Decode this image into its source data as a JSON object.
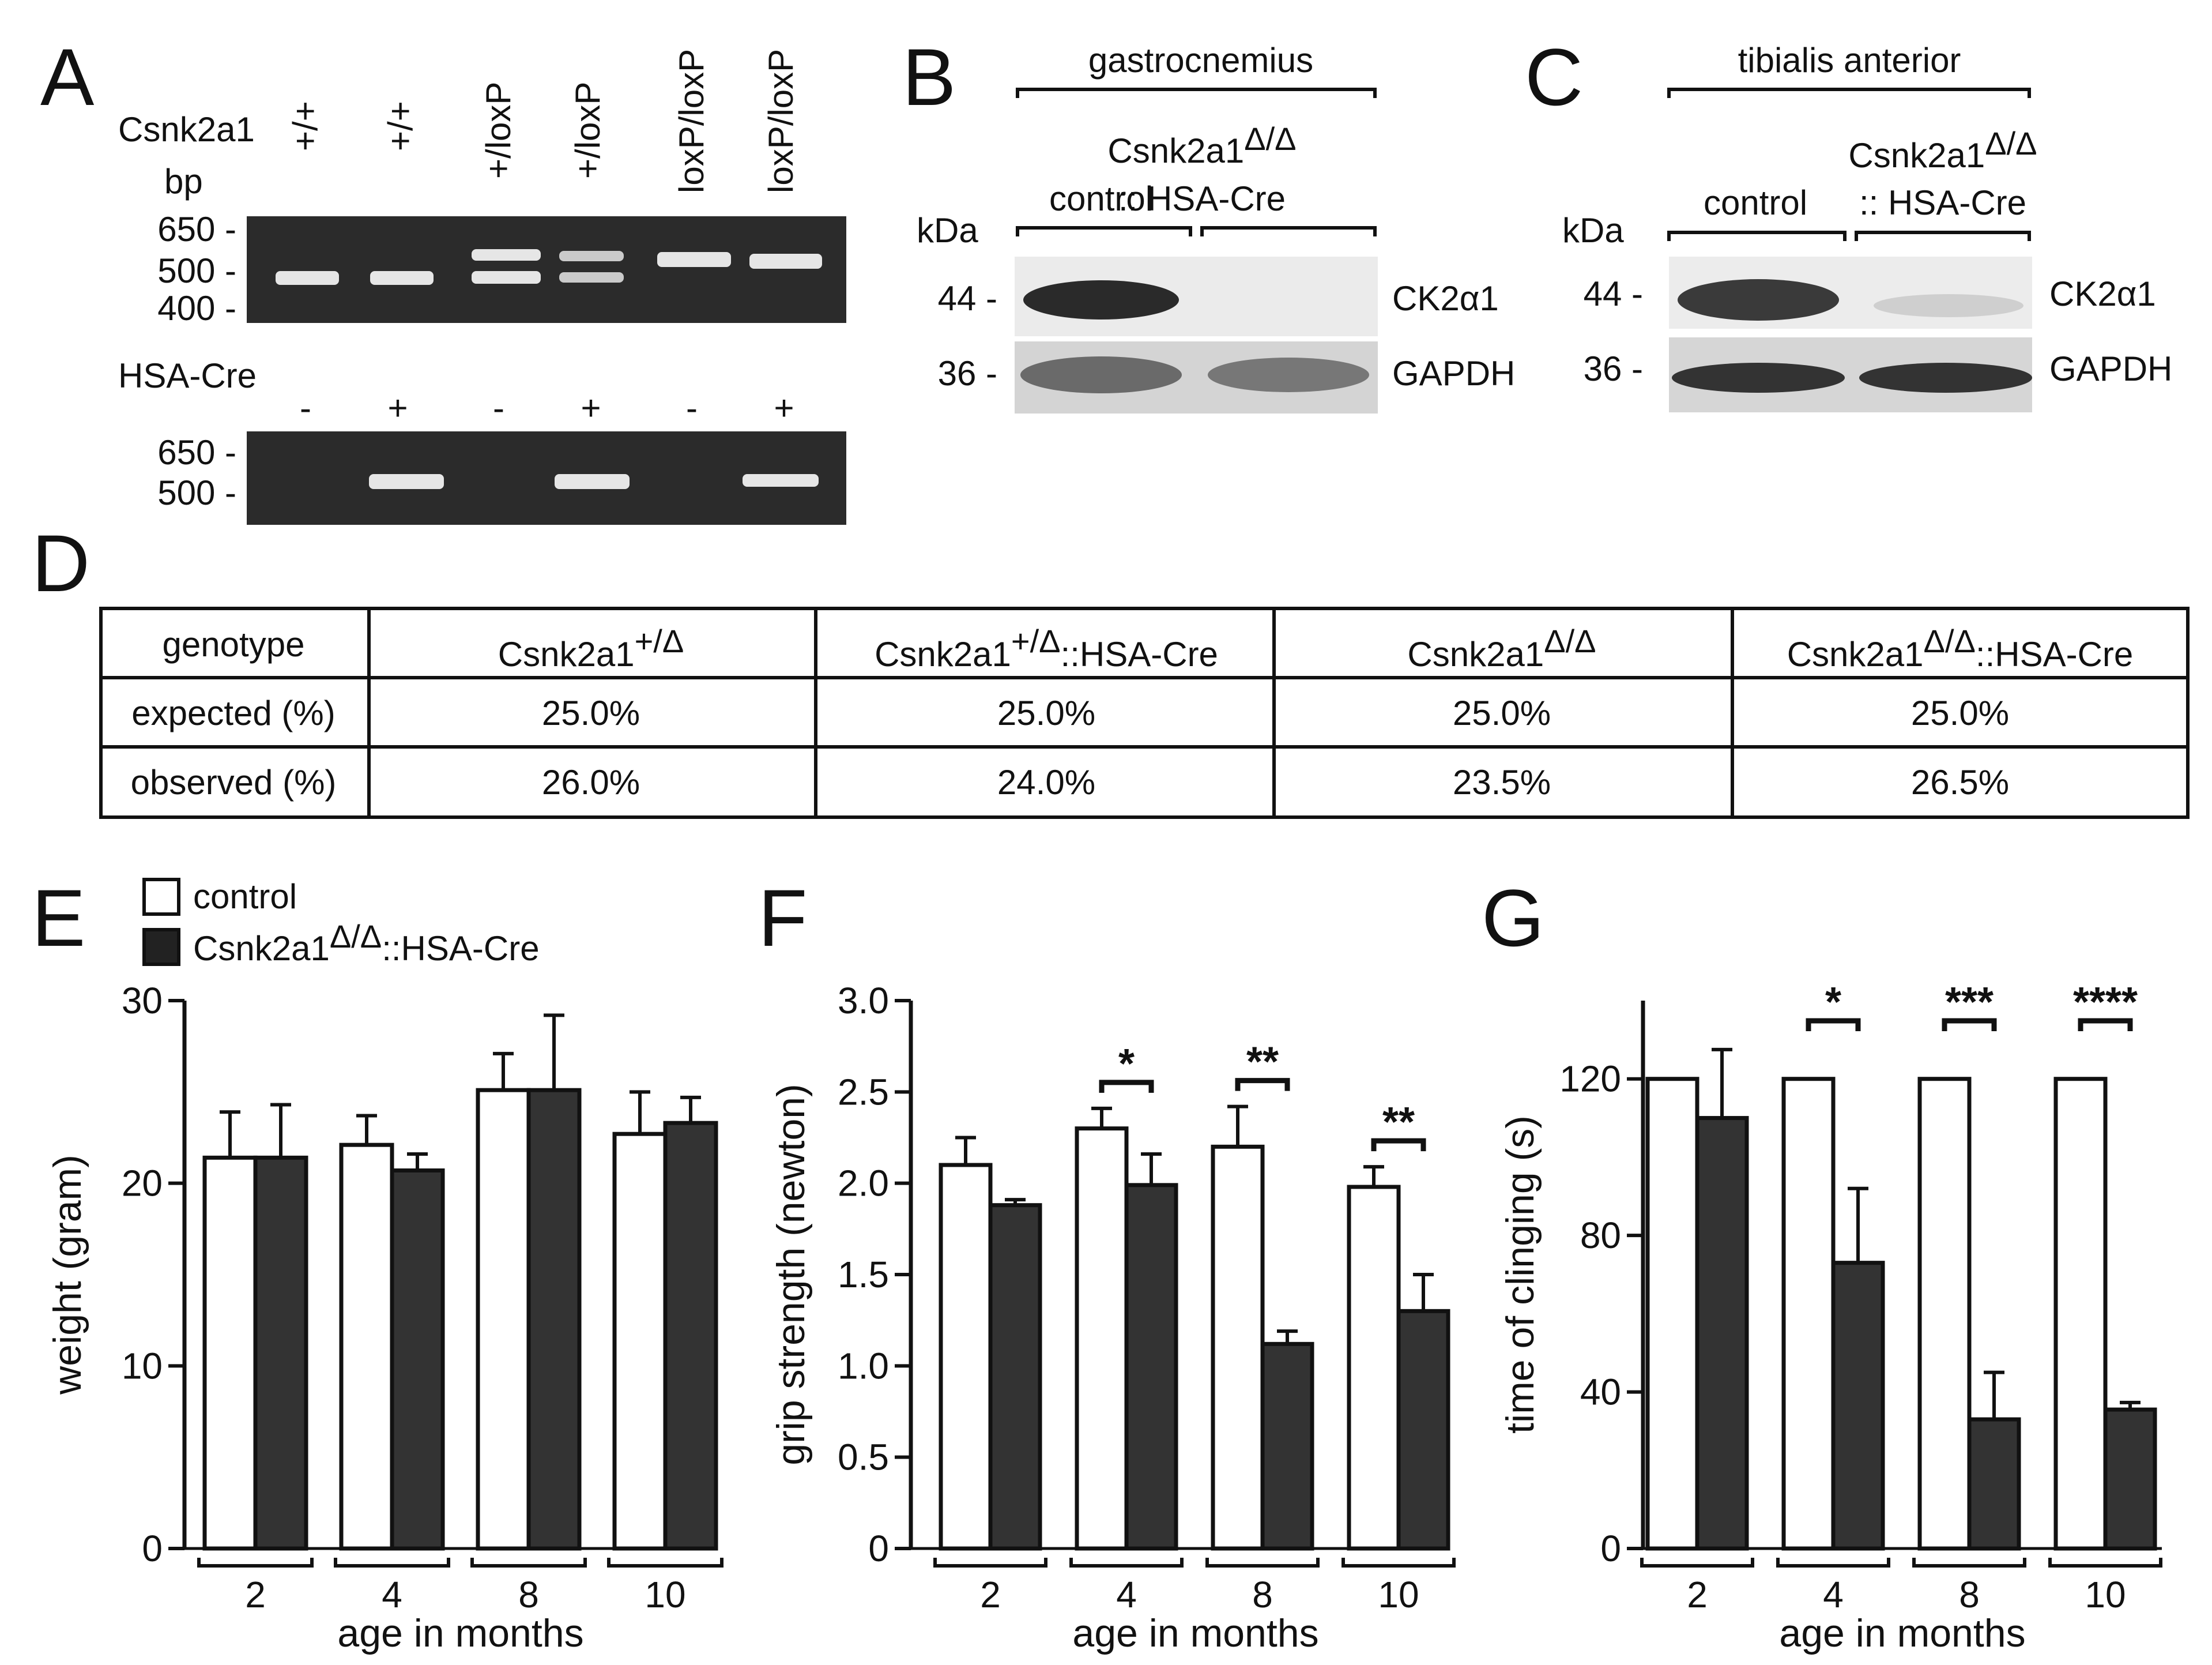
{
  "panel_letters": {
    "a": "A",
    "b": "B",
    "c": "C",
    "d": "D",
    "e": "E",
    "f": "F",
    "g": "G"
  },
  "panel_a": {
    "row_label": "Csnk2a1",
    "lanes": [
      "+/+",
      "+/+",
      "+/loxP",
      "+/loxP",
      "loxP/loxP",
      "loxP/loxP"
    ],
    "bp_label": "bp",
    "markers_top": [
      "650 -",
      "500 -",
      "400 -"
    ],
    "cre_label": "HSA-Cre",
    "cre_lanes": [
      "-",
      "+",
      "-",
      "+",
      "-",
      "+"
    ],
    "markers_bottom": [
      "650 -",
      "500 -"
    ]
  },
  "panel_b": {
    "tissue": "gastrocnemius",
    "kda": "kDa",
    "group_control": "control",
    "group_mut": "Csnk2a1",
    "group_mut_sup": "Δ/Δ",
    "group_mut_line2": ":: HSA-Cre",
    "mw": [
      "44 -",
      "36 -"
    ],
    "proteins": [
      "CK2α1",
      "GAPDH"
    ]
  },
  "panel_c": {
    "tissue": "tibialis anterior",
    "kda": "kDa",
    "group_control": "control",
    "group_mut": "Csnk2a1",
    "group_mut_sup": "Δ/Δ",
    "group_mut_line2": ":: HSA-Cre",
    "mw": [
      "44 -",
      "36 -"
    ],
    "proteins": [
      "CK2α1",
      "GAPDH"
    ]
  },
  "table": {
    "header": [
      {
        "text": "genotype",
        "sup": "",
        "tail": ""
      },
      {
        "text": "Csnk2a1",
        "sup": "+/Δ",
        "tail": ""
      },
      {
        "text": "Csnk2a1",
        "sup": "+/Δ",
        "tail": "::HSA-Cre"
      },
      {
        "text": "Csnk2a1",
        "sup": "Δ/Δ",
        "tail": ""
      },
      {
        "text": "Csnk2a1",
        "sup": "Δ/Δ",
        "tail": "::HSA-Cre"
      }
    ],
    "rows": [
      [
        "expected (%)",
        "25.0%",
        "25.0%",
        "25.0%",
        "25.0%"
      ],
      [
        "observed (%)",
        "26.0%",
        "24.0%",
        "23.5%",
        "26.5%"
      ]
    ]
  },
  "legend": {
    "control": "control",
    "mutant": "Csnk2a1",
    "mutant_sup": "Δ/Δ",
    "mutant_tail": "::HSA-Cre"
  },
  "colors": {
    "control_fill": "#ffffff",
    "mutant_fill": "#333333",
    "stroke": "#111111",
    "gel_bg": "#2b2b2b",
    "gel_band": "#e6e6e6"
  },
  "chart_data": [
    {
      "type": "bar",
      "panel": "E",
      "categories": [
        "2",
        "4",
        "8",
        "10"
      ],
      "xlabel": "age in months",
      "ylabel": "weight (gram)",
      "ylim": [
        0,
        30
      ],
      "yticks": [
        "0",
        "10",
        "20",
        "30"
      ],
      "series": [
        {
          "name": "control",
          "values": [
            21.4,
            22.1,
            25.1,
            22.7
          ],
          "errors": [
            2.5,
            1.6,
            2.0,
            2.3
          ]
        },
        {
          "name": "Csnk2a1Δ/Δ::HSA-Cre",
          "values": [
            21.4,
            20.7,
            25.1,
            23.3
          ],
          "errors": [
            2.9,
            0.9,
            4.1,
            1.4
          ]
        }
      ],
      "significance": []
    },
    {
      "type": "bar",
      "panel": "F",
      "categories": [
        "2",
        "4",
        "8",
        "10"
      ],
      "xlabel": "age in months",
      "ylabel": "grip strength (newton)",
      "ylim": [
        0,
        3.0
      ],
      "yticks": [
        "0",
        "0.5",
        "1.0",
        "1.5",
        "2.0",
        "2.5",
        "3.0"
      ],
      "series": [
        {
          "name": "control",
          "values": [
            2.1,
            2.3,
            2.2,
            1.98
          ],
          "errors": [
            0.15,
            0.11,
            0.22,
            0.11
          ]
        },
        {
          "name": "Csnk2a1Δ/Δ::HSA-Cre",
          "values": [
            1.88,
            1.99,
            1.12,
            1.3
          ],
          "errors": [
            0.03,
            0.17,
            0.07,
            0.2
          ]
        }
      ],
      "significance": [
        "",
        "*",
        "**",
        "**"
      ]
    },
    {
      "type": "bar",
      "panel": "G",
      "categories": [
        "2",
        "4",
        "8",
        "10"
      ],
      "xlabel": "age in months",
      "ylabel": "time of clinging (s)",
      "ylim": [
        0,
        140
      ],
      "yticks": [
        "0",
        "40",
        "80",
        "120"
      ],
      "series": [
        {
          "name": "control",
          "values": [
            120,
            120,
            120,
            120
          ],
          "errors": [
            0,
            0,
            0,
            0
          ]
        },
        {
          "name": "Csnk2a1Δ/Δ::HSA-Cre",
          "values": [
            110,
            73,
            33,
            35.5
          ],
          "errors": [
            17.5,
            19,
            12,
            1.8
          ]
        }
      ],
      "significance": [
        "",
        "*",
        "***",
        "****"
      ]
    }
  ]
}
